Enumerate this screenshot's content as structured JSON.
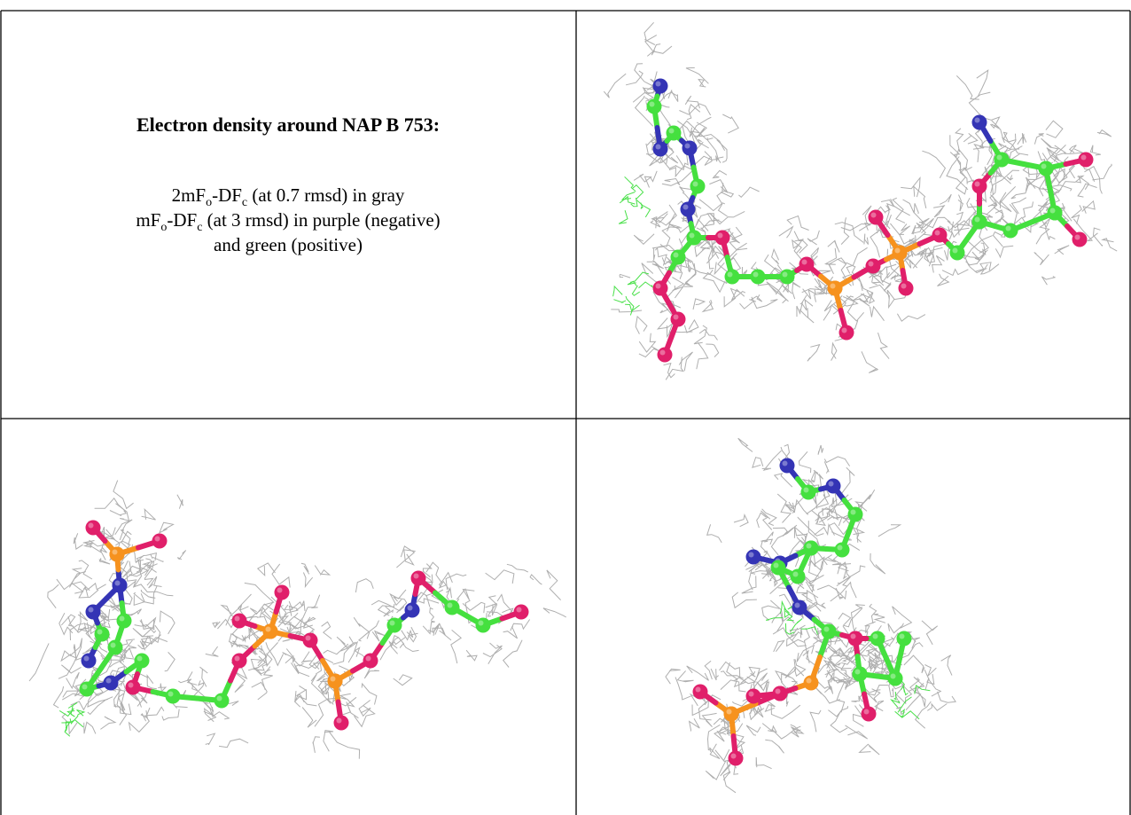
{
  "header": {
    "title": "Electron density around NAP B 753:"
  },
  "legend": {
    "line1": [
      "2mF",
      "o",
      "-DF",
      "c",
      " (at 0.7 rmsd) in gray"
    ],
    "line2": [
      "mF",
      "o",
      "-DF",
      "c",
      " (at 3 rmsd) in purple (negative)"
    ],
    "line3": [
      "and green (positive)"
    ]
  }
}
